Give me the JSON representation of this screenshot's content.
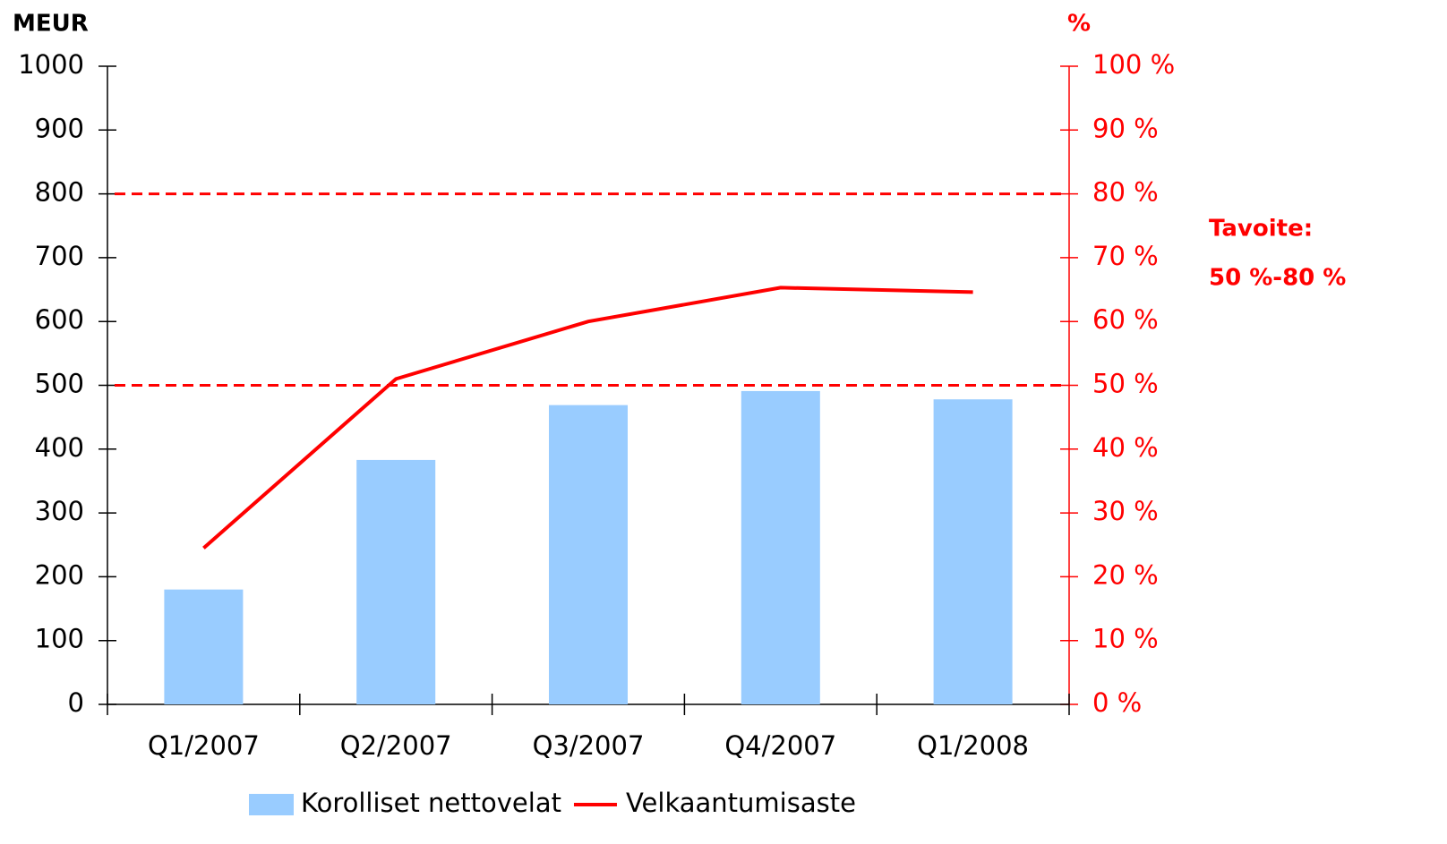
{
  "chart_data": {
    "type": "bar",
    "y_title": "MEUR",
    "y2_title": "%",
    "categories": [
      "Q1/2007",
      "Q2/2007",
      "Q3/2007",
      "Q4/2007",
      "Q1/2008"
    ],
    "series": [
      {
        "name": "Korolliset nettovelat",
        "type": "bar",
        "color": "#99ccff",
        "values": [
          180,
          383,
          469,
          491,
          478
        ]
      },
      {
        "name": "Velkaantumisaste",
        "type": "line",
        "axis": "y2",
        "color": "#ff0000",
        "values": [
          24.5,
          51,
          60,
          65.3,
          64.6
        ]
      }
    ],
    "ylim": [
      0,
      1000
    ],
    "yticks": [
      0,
      100,
      200,
      300,
      400,
      500,
      600,
      700,
      800,
      900,
      1000
    ],
    "y2lim": [
      0,
      100
    ],
    "y2ticks": [
      {
        "value": 0,
        "label": "0 %"
      },
      {
        "value": 10,
        "label": "10 %"
      },
      {
        "value": 20,
        "label": "20 %"
      },
      {
        "value": 30,
        "label": "30 %"
      },
      {
        "value": 40,
        "label": "40 %"
      },
      {
        "value": 50,
        "label": "50 %"
      },
      {
        "value": 60,
        "label": "60 %"
      },
      {
        "value": 70,
        "label": "70 %"
      },
      {
        "value": 80,
        "label": "80 %"
      },
      {
        "value": 90,
        "label": "90 %"
      },
      {
        "value": 100,
        "label": "100 %"
      }
    ],
    "reference_lines": [
      80,
      50
    ],
    "annotations": [
      "Tavoite:",
      "50 %-80 %"
    ],
    "legend": "bottom"
  }
}
